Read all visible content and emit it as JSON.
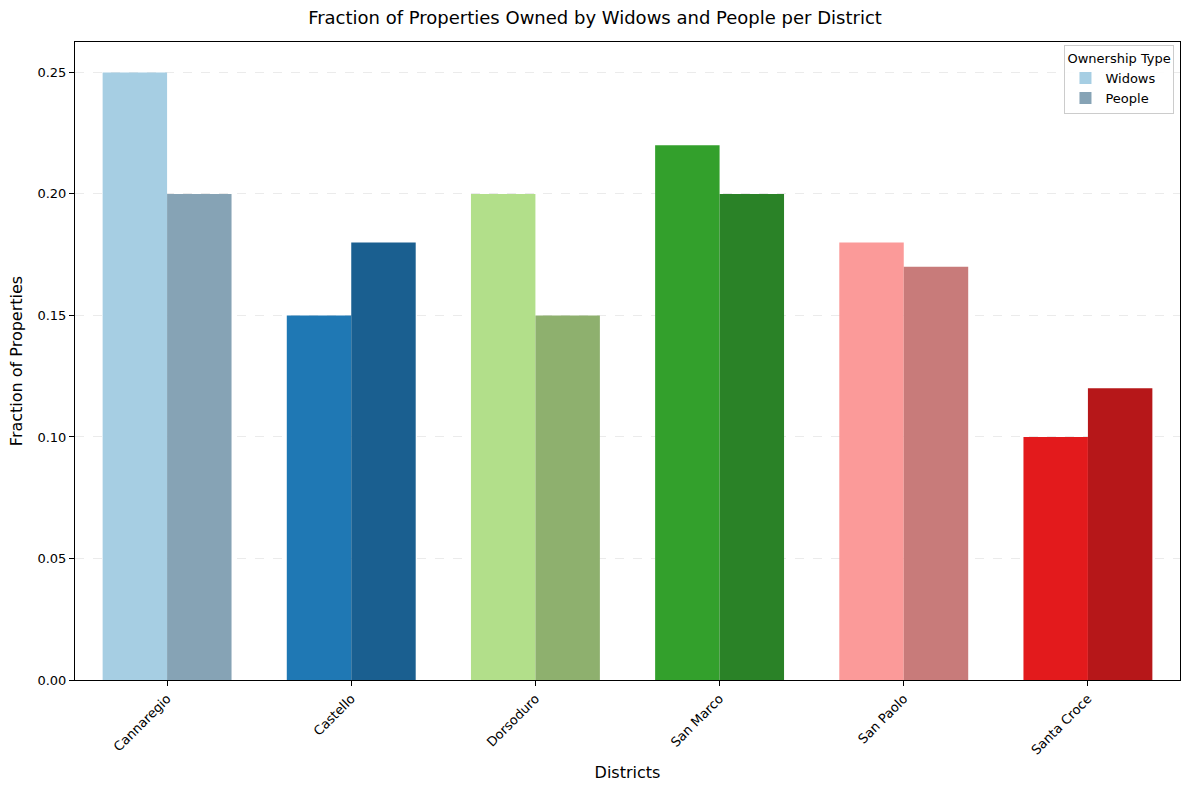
{
  "chart_data": {
    "type": "bar",
    "title": "Fraction of Properties Owned by Widows and People per District",
    "x_label": "Districts",
    "y_label": "Fraction of Properties",
    "categories": [
      "Cannaregio",
      "Castello",
      "Dorsoduro",
      "San Marco",
      "San Paolo",
      "Santa Croce"
    ],
    "series": [
      {
        "name": "Widows",
        "values": [
          0.25,
          0.15,
          0.2,
          0.22,
          0.18,
          0.1
        ],
        "colors": [
          "#a6cee3",
          "#1f78b4",
          "#b2df8a",
          "#33a02c",
          "#fb9a99",
          "#e31a1c"
        ]
      },
      {
        "name": "People",
        "values": [
          0.2,
          0.18,
          0.15,
          0.2,
          0.17,
          0.12
        ],
        "colors": [
          "#86a3b5",
          "#1a5f90",
          "#8eb06e",
          "#2a8227",
          "#c87b7a",
          "#b61719"
        ]
      }
    ],
    "legend_title": "Ownership Type",
    "legend": "upper right",
    "ylim": [
      0,
      0.2625
    ],
    "yticks": [
      {
        "value": 0,
        "label": "0.00"
      },
      {
        "value": 0.05,
        "label": "0.05"
      },
      {
        "value": 0.1,
        "label": "0.10"
      },
      {
        "value": 0.15,
        "label": "0.15"
      },
      {
        "value": 0.2,
        "label": "0.20"
      },
      {
        "value": 0.25,
        "label": "0.25"
      }
    ],
    "grid": true
  }
}
